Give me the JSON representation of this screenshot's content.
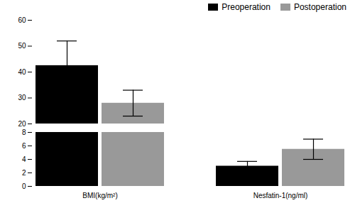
{
  "chart_data": [
    {
      "type": "bar",
      "categories": [
        "BMI(kg/m²)",
        "Nesfatin-1(ng/ml)"
      ],
      "series": [
        {
          "name": "Preoperation",
          "color": "#000000",
          "values": [
            42.5,
            null
          ],
          "errors": [
            9.5,
            null
          ]
        },
        {
          "name": "Postoperation",
          "color": "#999999",
          "values": [
            28.0,
            null
          ],
          "errors": [
            5.0,
            null
          ]
        }
      ],
      "ylim": [
        20,
        60
      ],
      "yticks": [
        20,
        30,
        40,
        50,
        60
      ],
      "legend": "upper right",
      "tick_labels": "y"
    },
    {
      "type": "bar",
      "categories": [
        "BMI(kg/m²)",
        "Nesfatin-1(ng/ml)"
      ],
      "series": [
        {
          "name": "Preoperation",
          "color": "#000000",
          "values": [
            8,
            3.0
          ],
          "errors": [
            null,
            0.7
          ]
        },
        {
          "name": "Postoperation",
          "color": "#999999",
          "values": [
            8,
            5.5
          ],
          "errors": [
            null,
            1.5
          ]
        }
      ],
      "ylim": [
        0,
        8
      ],
      "yticks": [
        0,
        2,
        4,
        6,
        8
      ]
    }
  ]
}
